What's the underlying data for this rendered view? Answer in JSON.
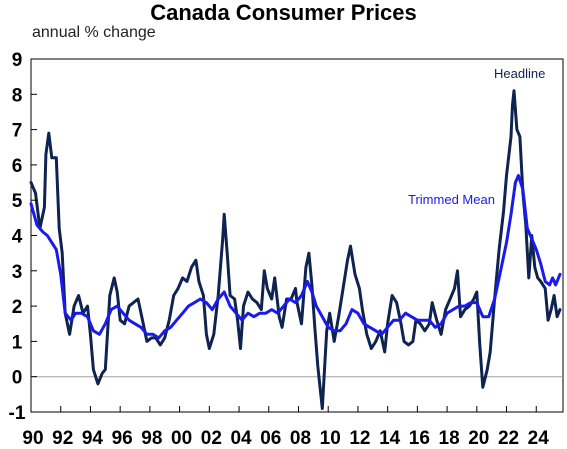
{
  "chart_data": {
    "type": "line",
    "title": "Canada Consumer Prices",
    "ylabel": "annual % change",
    "xlabel": "",
    "ylim": [
      -1,
      9
    ],
    "xlim": [
      1990,
      2025.8
    ],
    "y_ticks": [
      "9",
      "8",
      "7",
      "6",
      "5",
      "4",
      "3",
      "2",
      "1",
      "0",
      "-1"
    ],
    "x_ticks": [
      {
        "label": "90",
        "year": 1990
      },
      {
        "label": "92",
        "year": 1992
      },
      {
        "label": "94",
        "year": 1994
      },
      {
        "label": "96",
        "year": 1996
      },
      {
        "label": "98",
        "year": 1998
      },
      {
        "label": "00",
        "year": 2000
      },
      {
        "label": "02",
        "year": 2002
      },
      {
        "label": "04",
        "year": 2004
      },
      {
        "label": "06",
        "year": 2006
      },
      {
        "label": "08",
        "year": 2008
      },
      {
        "label": "10",
        "year": 2010
      },
      {
        "label": "12",
        "year": 2012
      },
      {
        "label": "14",
        "year": 2014
      },
      {
        "label": "16",
        "year": 2016
      },
      {
        "label": "18",
        "year": 2018
      },
      {
        "label": "20",
        "year": 2020
      },
      {
        "label": "22",
        "year": 2022
      },
      {
        "label": "24",
        "year": 2024
      }
    ],
    "zero_line": true,
    "series": [
      {
        "name": "Headline",
        "color": "#0f2350",
        "label_position": "top-right",
        "points": [
          [
            1990.0,
            5.5
          ],
          [
            1990.3,
            5.2
          ],
          [
            1990.6,
            4.2
          ],
          [
            1990.9,
            4.8
          ],
          [
            1991.0,
            6.3
          ],
          [
            1991.2,
            6.9
          ],
          [
            1991.4,
            6.2
          ],
          [
            1991.7,
            6.2
          ],
          [
            1991.9,
            4.2
          ],
          [
            1992.1,
            3.5
          ],
          [
            1992.3,
            1.8
          ],
          [
            1992.6,
            1.2
          ],
          [
            1992.9,
            2.0
          ],
          [
            1993.2,
            2.3
          ],
          [
            1993.5,
            1.8
          ],
          [
            1993.8,
            2.0
          ],
          [
            1994.0,
            1.2
          ],
          [
            1994.2,
            0.2
          ],
          [
            1994.5,
            -0.2
          ],
          [
            1994.8,
            0.1
          ],
          [
            1995.0,
            0.2
          ],
          [
            1995.3,
            2.3
          ],
          [
            1995.6,
            2.8
          ],
          [
            1995.8,
            2.4
          ],
          [
            1996.0,
            1.6
          ],
          [
            1996.3,
            1.5
          ],
          [
            1996.6,
            2.0
          ],
          [
            1996.9,
            2.1
          ],
          [
            1997.2,
            2.2
          ],
          [
            1997.5,
            1.6
          ],
          [
            1997.8,
            1.0
          ],
          [
            1998.1,
            1.1
          ],
          [
            1998.4,
            1.1
          ],
          [
            1998.7,
            0.9
          ],
          [
            1999.0,
            1.1
          ],
          [
            1999.3,
            1.6
          ],
          [
            1999.6,
            2.3
          ],
          [
            1999.9,
            2.5
          ],
          [
            2000.2,
            2.8
          ],
          [
            2000.5,
            2.7
          ],
          [
            2000.8,
            3.1
          ],
          [
            2001.1,
            3.3
          ],
          [
            2001.3,
            2.7
          ],
          [
            2001.6,
            2.3
          ],
          [
            2001.8,
            1.2
          ],
          [
            2002.0,
            0.8
          ],
          [
            2002.3,
            1.2
          ],
          [
            2002.6,
            2.3
          ],
          [
            2002.9,
            3.9
          ],
          [
            2003.0,
            4.6
          ],
          [
            2003.2,
            3.5
          ],
          [
            2003.4,
            2.3
          ],
          [
            2003.7,
            2.2
          ],
          [
            2003.9,
            1.6
          ],
          [
            2004.1,
            0.8
          ],
          [
            2004.3,
            2.0
          ],
          [
            2004.6,
            2.4
          ],
          [
            2004.9,
            2.2
          ],
          [
            2005.2,
            2.1
          ],
          [
            2005.5,
            1.9
          ],
          [
            2005.7,
            3.0
          ],
          [
            2005.9,
            2.5
          ],
          [
            2006.2,
            2.2
          ],
          [
            2006.4,
            2.8
          ],
          [
            2006.7,
            1.7
          ],
          [
            2006.9,
            1.4
          ],
          [
            2007.2,
            2.2
          ],
          [
            2007.5,
            2.2
          ],
          [
            2007.8,
            2.5
          ],
          [
            2007.9,
            2.1
          ],
          [
            2008.2,
            1.5
          ],
          [
            2008.5,
            3.1
          ],
          [
            2008.7,
            3.5
          ],
          [
            2008.9,
            2.6
          ],
          [
            2009.1,
            1.4
          ],
          [
            2009.3,
            0.3
          ],
          [
            2009.5,
            -0.5
          ],
          [
            2009.6,
            -0.9
          ],
          [
            2009.9,
            1.3
          ],
          [
            2010.1,
            1.8
          ],
          [
            2010.4,
            1.0
          ],
          [
            2010.7,
            1.7
          ],
          [
            2011.0,
            2.5
          ],
          [
            2011.3,
            3.3
          ],
          [
            2011.5,
            3.7
          ],
          [
            2011.8,
            2.9
          ],
          [
            2012.1,
            2.5
          ],
          [
            2012.3,
            1.9
          ],
          [
            2012.6,
            1.2
          ],
          [
            2012.9,
            0.8
          ],
          [
            2013.2,
            1.0
          ],
          [
            2013.5,
            1.3
          ],
          [
            2013.8,
            0.7
          ],
          [
            2014.0,
            1.5
          ],
          [
            2014.3,
            2.3
          ],
          [
            2014.6,
            2.1
          ],
          [
            2014.9,
            1.5
          ],
          [
            2015.1,
            1.0
          ],
          [
            2015.4,
            0.9
          ],
          [
            2015.7,
            1.0
          ],
          [
            2015.9,
            1.6
          ],
          [
            2016.2,
            1.5
          ],
          [
            2016.5,
            1.3
          ],
          [
            2016.8,
            1.5
          ],
          [
            2017.0,
            2.1
          ],
          [
            2017.3,
            1.6
          ],
          [
            2017.6,
            1.2
          ],
          [
            2017.9,
            1.9
          ],
          [
            2018.2,
            2.2
          ],
          [
            2018.5,
            2.5
          ],
          [
            2018.7,
            3.0
          ],
          [
            2018.9,
            1.7
          ],
          [
            2019.2,
            1.9
          ],
          [
            2019.5,
            2.0
          ],
          [
            2019.8,
            2.2
          ],
          [
            2020.0,
            2.4
          ],
          [
            2020.2,
            0.9
          ],
          [
            2020.4,
            -0.3
          ],
          [
            2020.7,
            0.2
          ],
          [
            2020.9,
            0.7
          ],
          [
            2021.2,
            2.2
          ],
          [
            2021.5,
            3.6
          ],
          [
            2021.8,
            4.7
          ],
          [
            2022.0,
            5.7
          ],
          [
            2022.3,
            6.8
          ],
          [
            2022.4,
            7.7
          ],
          [
            2022.5,
            8.1
          ],
          [
            2022.7,
            7.0
          ],
          [
            2022.9,
            6.8
          ],
          [
            2023.1,
            5.2
          ],
          [
            2023.3,
            4.3
          ],
          [
            2023.5,
            2.8
          ],
          [
            2023.7,
            4.0
          ],
          [
            2023.9,
            3.1
          ],
          [
            2024.1,
            2.8
          ],
          [
            2024.3,
            2.7
          ],
          [
            2024.6,
            2.5
          ],
          [
            2024.8,
            1.6
          ],
          [
            2025.0,
            1.9
          ],
          [
            2025.2,
            2.3
          ],
          [
            2025.4,
            1.7
          ],
          [
            2025.6,
            1.9
          ]
        ]
      },
      {
        "name": "Trimmed Mean",
        "color": "#1a1aee",
        "label_position": "right",
        "points": [
          [
            1990.0,
            4.9
          ],
          [
            1990.4,
            4.3
          ],
          [
            1990.8,
            4.1
          ],
          [
            1991.1,
            4.0
          ],
          [
            1991.4,
            3.8
          ],
          [
            1991.7,
            3.6
          ],
          [
            1992.0,
            2.9
          ],
          [
            1992.3,
            1.8
          ],
          [
            1992.7,
            1.6
          ],
          [
            1993.0,
            1.8
          ],
          [
            1993.4,
            1.8
          ],
          [
            1993.8,
            1.7
          ],
          [
            1994.2,
            1.3
          ],
          [
            1994.6,
            1.2
          ],
          [
            1995.0,
            1.5
          ],
          [
            1995.4,
            1.9
          ],
          [
            1995.8,
            2.0
          ],
          [
            1996.2,
            1.8
          ],
          [
            1996.6,
            1.6
          ],
          [
            1997.0,
            1.5
          ],
          [
            1997.4,
            1.4
          ],
          [
            1997.8,
            1.2
          ],
          [
            1998.2,
            1.2
          ],
          [
            1998.6,
            1.1
          ],
          [
            1999.0,
            1.3
          ],
          [
            1999.4,
            1.4
          ],
          [
            1999.8,
            1.6
          ],
          [
            2000.2,
            1.8
          ],
          [
            2000.6,
            2.0
          ],
          [
            2001.0,
            2.1
          ],
          [
            2001.4,
            2.2
          ],
          [
            2001.8,
            2.1
          ],
          [
            2002.2,
            1.9
          ],
          [
            2002.6,
            2.2
          ],
          [
            2003.0,
            2.4
          ],
          [
            2003.4,
            2.0
          ],
          [
            2003.8,
            1.8
          ],
          [
            2004.2,
            1.6
          ],
          [
            2004.6,
            1.8
          ],
          [
            2005.0,
            1.7
          ],
          [
            2005.4,
            1.8
          ],
          [
            2005.8,
            1.8
          ],
          [
            2006.2,
            1.9
          ],
          [
            2006.6,
            1.8
          ],
          [
            2007.0,
            2.0
          ],
          [
            2007.4,
            2.2
          ],
          [
            2007.8,
            2.1
          ],
          [
            2008.2,
            2.3
          ],
          [
            2008.6,
            2.7
          ],
          [
            2008.9,
            2.4
          ],
          [
            2009.2,
            2.0
          ],
          [
            2009.6,
            1.7
          ],
          [
            2010.0,
            1.4
          ],
          [
            2010.4,
            1.3
          ],
          [
            2010.8,
            1.3
          ],
          [
            2011.2,
            1.5
          ],
          [
            2011.6,
            1.9
          ],
          [
            2012.0,
            1.8
          ],
          [
            2012.4,
            1.5
          ],
          [
            2012.8,
            1.4
          ],
          [
            2013.2,
            1.3
          ],
          [
            2013.6,
            1.2
          ],
          [
            2014.0,
            1.4
          ],
          [
            2014.4,
            1.6
          ],
          [
            2014.8,
            1.6
          ],
          [
            2015.2,
            1.8
          ],
          [
            2015.6,
            1.7
          ],
          [
            2016.0,
            1.6
          ],
          [
            2016.4,
            1.6
          ],
          [
            2016.8,
            1.6
          ],
          [
            2017.2,
            1.4
          ],
          [
            2017.6,
            1.5
          ],
          [
            2018.0,
            1.8
          ],
          [
            2018.4,
            1.9
          ],
          [
            2018.8,
            2.0
          ],
          [
            2019.2,
            2.0
          ],
          [
            2019.6,
            2.1
          ],
          [
            2020.0,
            2.1
          ],
          [
            2020.4,
            1.7
          ],
          [
            2020.8,
            1.7
          ],
          [
            2021.2,
            2.2
          ],
          [
            2021.6,
            3.0
          ],
          [
            2022.0,
            3.8
          ],
          [
            2022.3,
            4.6
          ],
          [
            2022.6,
            5.5
          ],
          [
            2022.8,
            5.7
          ],
          [
            2023.1,
            5.3
          ],
          [
            2023.4,
            4.2
          ],
          [
            2023.7,
            3.9
          ],
          [
            2024.0,
            3.6
          ],
          [
            2024.3,
            3.2
          ],
          [
            2024.6,
            2.7
          ],
          [
            2024.9,
            2.6
          ],
          [
            2025.1,
            2.8
          ],
          [
            2025.3,
            2.6
          ],
          [
            2025.6,
            2.9
          ]
        ]
      }
    ]
  }
}
